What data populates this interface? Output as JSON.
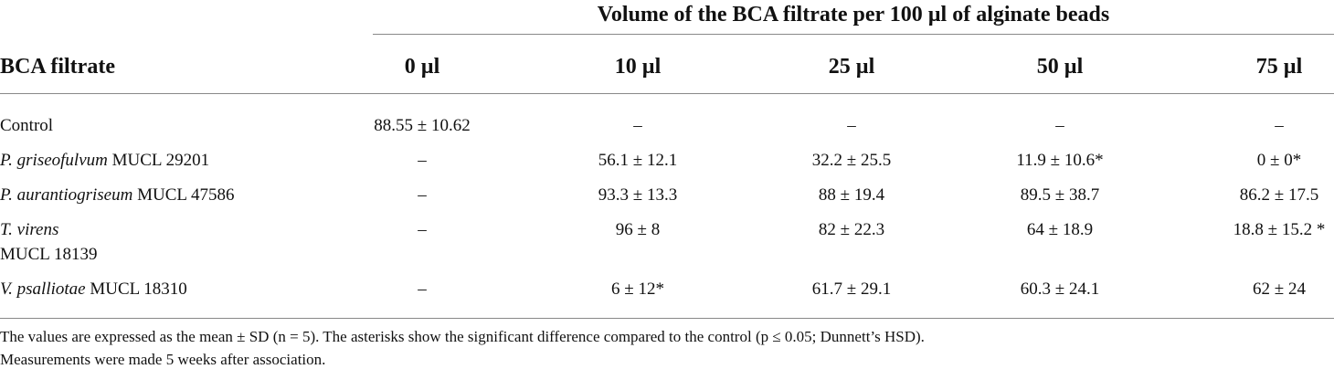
{
  "header": {
    "title": "Volume of the BCA filtrate per 100 µl of alginate beads",
    "columns": [
      "BCA filtrate",
      "0 µl",
      "10 µl",
      "25 µl",
      "50 µl",
      "75 µl"
    ]
  },
  "table": {
    "rows": [
      {
        "label": "Control",
        "values": [
          "88.55 ± 10.62",
          "–",
          "–",
          "–",
          "–"
        ]
      },
      {
        "species": "P. griseofulvum",
        "strain": "MUCL 29201",
        "values": [
          "–",
          "56.1 ± 12.1",
          "32.2 ± 25.5",
          "11.9 ± 10.6*",
          "0 ± 0*"
        ]
      },
      {
        "species": "P. aurantiogriseum",
        "strain": "MUCL 47586",
        "values": [
          "–",
          "93.3 ± 13.3",
          "88 ± 19.4",
          "89.5 ± 38.7",
          "86.2 ± 17.5"
        ]
      },
      {
        "species": "T. virens",
        "strain": "MUCL 18139",
        "values": [
          "–",
          "96 ± 8",
          "82 ± 22.3",
          "64 ± 18.9",
          "18.8 ± 15.2 *"
        ]
      },
      {
        "species": "V. psalliotae",
        "strain": "MUCL 18310",
        "values": [
          "–",
          "6 ± 12*",
          "61.7 ± 29.1",
          "60.3 ± 24.1",
          "62 ± 24"
        ]
      }
    ]
  },
  "notes": [
    "The values are expressed as the mean ± SD (n = 5). The asterisks show the significant difference compared to the control (p ≤ 0.05; Dunnett’s HSD).",
    "Measurements were made 5 weeks after association."
  ]
}
